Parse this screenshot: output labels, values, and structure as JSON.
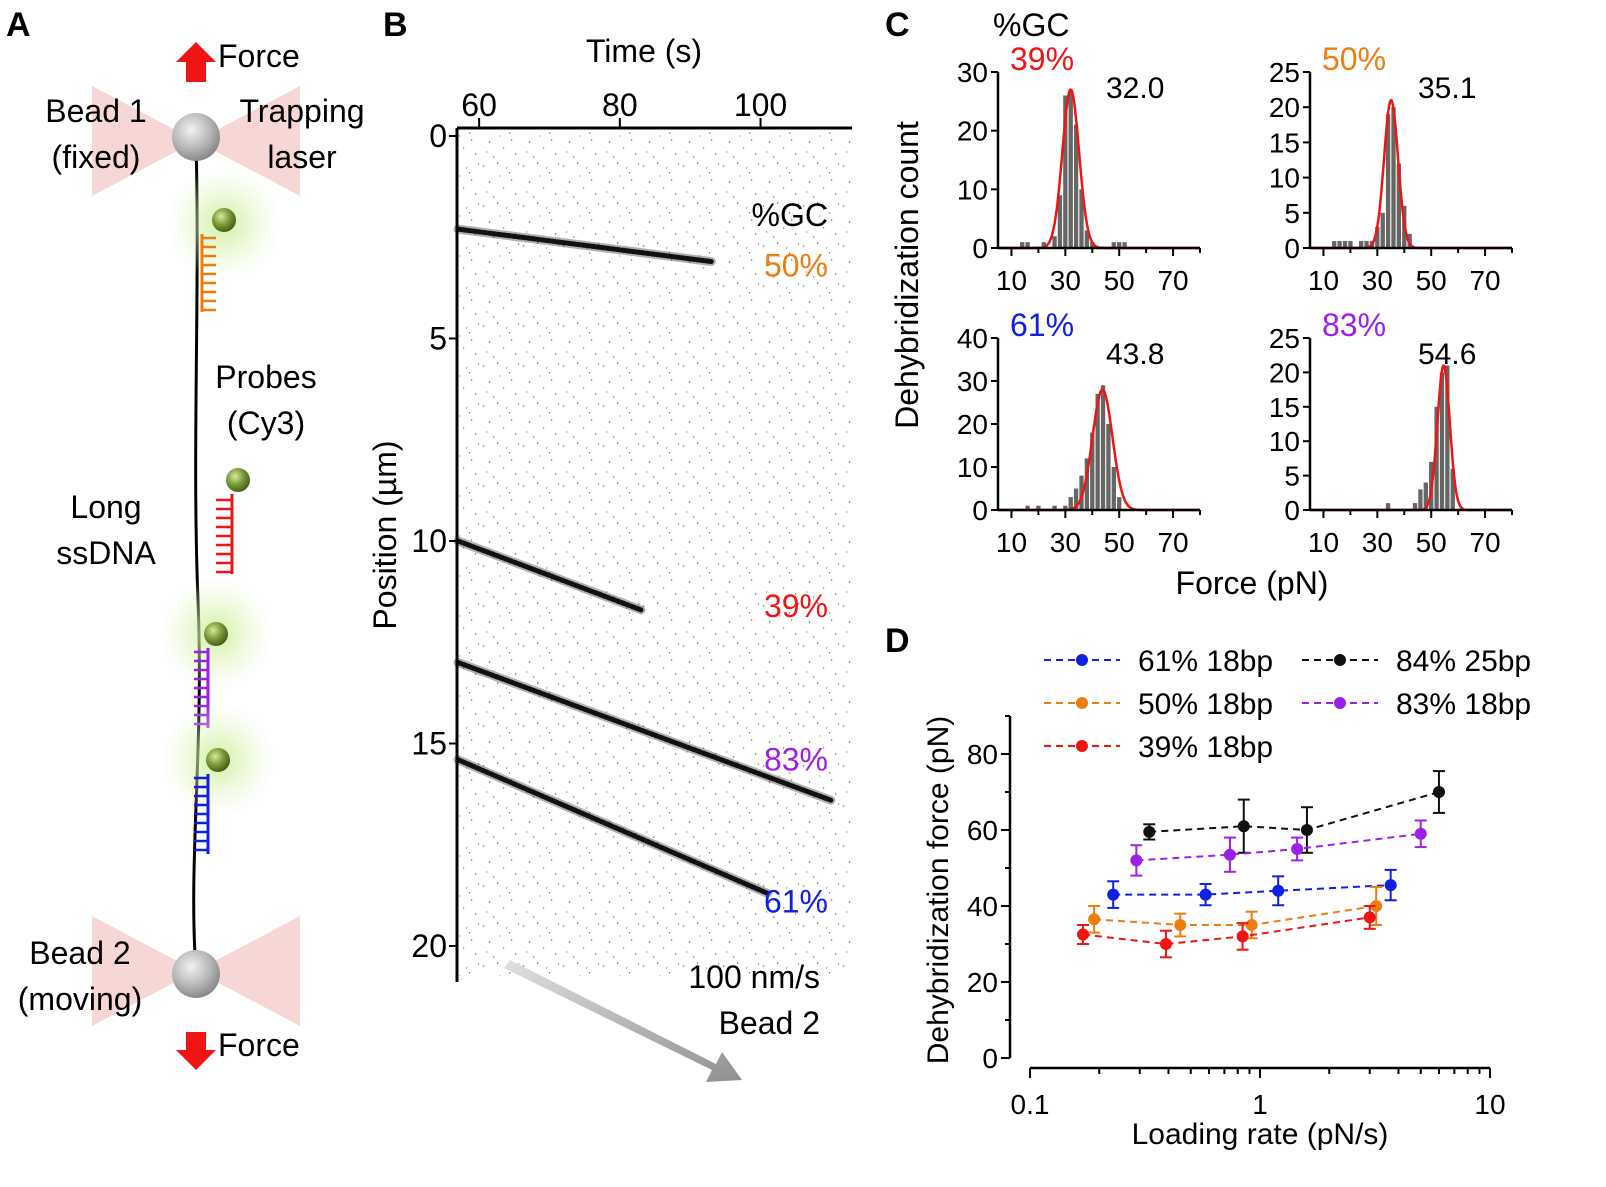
{
  "colors": {
    "red": "#f01414",
    "orange": "#ee7d10",
    "blue": "#1020e0",
    "purple": "#9c20e8",
    "black": "#111111",
    "bar": "#666666",
    "fit": "#f01414",
    "green_bead": "#7a9a38",
    "laser": "#f4c4c4"
  },
  "panels": {
    "a": "A",
    "b": "B",
    "c": "C",
    "d": "D"
  },
  "panel_a": {
    "force_top": "Force",
    "force_bottom": "Force",
    "bead1_line1": "Bead 1",
    "bead1_line2": "(fixed)",
    "laser_line1": "Trapping",
    "laser_line2": "laser",
    "probes_line1": "Probes",
    "probes_line2": "(Cy3)",
    "ssdna_line1": "Long",
    "ssdna_line2": "ssDNA",
    "bead2_line1": "Bead 2",
    "bead2_line2": "(moving)"
  },
  "panel_b": {
    "xlabel": "Time (s)",
    "ylabel": "Position (µm)",
    "speed_label": "100 nm/s",
    "bead_label": "Bead 2",
    "gc_header": "%GC"
  },
  "panel_c_header": "%GC",
  "panel_c_xlabel": "Force (pN)",
  "panel_c_ylabel": "Dehybridization count",
  "chart_data": [
    {
      "type": "line",
      "id": "kymograph",
      "xlabel": "Time (s)",
      "ylabel": "Position (µm)",
      "xlim": [
        57,
        113
      ],
      "ylim": [
        0,
        20
      ],
      "xticks": [
        60,
        80,
        100
      ],
      "yticks": [
        0,
        5,
        10,
        15,
        20
      ],
      "y_inverted": true,
      "series": [
        {
          "name": "50%",
          "color": "#ee7d10",
          "x": [
            57,
            93
          ],
          "y": [
            2.3,
            3.1
          ],
          "label_at": [
            102,
            3.2
          ]
        },
        {
          "name": "39%",
          "color": "#f01414",
          "x": [
            57,
            83
          ],
          "y": [
            10.0,
            11.7
          ],
          "label_at": [
            102,
            11.6
          ]
        },
        {
          "name": "83%",
          "color": "#9c20e8",
          "x": [
            57,
            110
          ],
          "y": [
            13.0,
            16.4
          ],
          "label_at": [
            102,
            15.4
          ]
        },
        {
          "name": "61%",
          "color": "#1020e0",
          "x": [
            57,
            101
          ],
          "y": [
            15.4,
            18.7
          ],
          "label_at": [
            102,
            18.9
          ]
        }
      ]
    },
    {
      "type": "bar",
      "id": "hist-39",
      "gc_label": "39%",
      "gc_color": "#f01414",
      "peak_label": "32.0",
      "xlim": [
        5,
        80
      ],
      "ylim": [
        0,
        30
      ],
      "xticks": [
        10,
        30,
        50,
        70
      ],
      "yticks": [
        0,
        10,
        20,
        30
      ],
      "bin_width": 2,
      "bins": [
        14,
        16,
        18,
        20,
        22,
        24,
        26,
        28,
        30,
        32,
        34,
        36,
        38,
        40,
        42,
        44,
        46,
        48,
        50,
        52
      ],
      "counts": [
        1,
        1,
        0,
        0,
        1,
        0,
        2,
        9,
        26,
        27,
        21,
        10,
        3,
        1,
        0,
        0,
        0,
        1,
        1,
        1
      ],
      "fit": {
        "mean": 32.0,
        "sd": 3.1,
        "amp": 27
      }
    },
    {
      "type": "bar",
      "id": "hist-50",
      "gc_label": "50%",
      "gc_color": "#ee7d10",
      "peak_label": "35.1",
      "xlim": [
        5,
        80
      ],
      "ylim": [
        0,
        25
      ],
      "xticks": [
        10,
        30,
        50,
        70
      ],
      "yticks": [
        0,
        5,
        10,
        15,
        20,
        25
      ],
      "bin_width": 2,
      "bins": [
        14,
        16,
        18,
        20,
        22,
        24,
        26,
        28,
        30,
        32,
        34,
        36,
        38,
        40,
        42
      ],
      "counts": [
        1,
        1,
        1,
        1,
        0,
        1,
        1,
        1,
        3,
        5,
        19,
        20,
        12,
        6,
        2
      ],
      "fit": {
        "mean": 35.1,
        "sd": 2.6,
        "amp": 21
      }
    },
    {
      "type": "bar",
      "id": "hist-61",
      "gc_label": "61%",
      "gc_color": "#1020e0",
      "peak_label": "43.8",
      "xlim": [
        5,
        80
      ],
      "ylim": [
        0,
        40
      ],
      "xticks": [
        10,
        30,
        50,
        70
      ],
      "yticks": [
        0,
        10,
        20,
        30,
        40
      ],
      "bin_width": 2,
      "bins": [
        16,
        20,
        26,
        30,
        32,
        34,
        36,
        38,
        40,
        42,
        44,
        46,
        48,
        50
      ],
      "counts": [
        1,
        1,
        1,
        1,
        3,
        5,
        8,
        12,
        18,
        27,
        29,
        20,
        10,
        3
      ],
      "fit": {
        "mean": 43.8,
        "sd": 3.7,
        "amp": 28
      }
    },
    {
      "type": "bar",
      "id": "hist-83",
      "gc_label": "83%",
      "gc_color": "#9c20e8",
      "peak_label": "54.6",
      "xlim": [
        5,
        80
      ],
      "ylim": [
        0,
        25
      ],
      "xticks": [
        10,
        30,
        50,
        70
      ],
      "yticks": [
        0,
        5,
        10,
        15,
        20,
        25
      ],
      "bin_width": 2,
      "bins": [
        34,
        44,
        46,
        48,
        50,
        52,
        54,
        56,
        58
      ],
      "counts": [
        1,
        1,
        3,
        4,
        7,
        15,
        20,
        21,
        6
      ],
      "fit": {
        "mean": 54.6,
        "sd": 2.3,
        "amp": 21
      }
    },
    {
      "type": "scatter",
      "id": "loading-rate",
      "xlabel": "Loading rate (pN/s)",
      "ylabel": "Dehybridization force (pN)",
      "x_scale": "log",
      "xlim": [
        0.1,
        10
      ],
      "ylim": [
        0,
        90
      ],
      "xticks": [
        "0.1",
        "1",
        "10"
      ],
      "yticks": [
        0,
        20,
        40,
        60,
        80
      ],
      "series": [
        {
          "name": "61% 18bp",
          "color": "#1020e0",
          "x": [
            0.23,
            0.58,
            1.2,
            3.7
          ],
          "y": [
            43,
            43,
            44,
            45.5
          ],
          "err": [
            3.5,
            2.8,
            3.8,
            4
          ]
        },
        {
          "name": "50% 18bp",
          "color": "#ee7d10",
          "x": [
            0.19,
            0.45,
            0.92,
            3.2
          ],
          "y": [
            36.5,
            35,
            35,
            40
          ],
          "err": [
            3.5,
            3,
            3.5,
            5
          ]
        },
        {
          "name": "39% 18bp",
          "color": "#f01414",
          "x": [
            0.17,
            0.39,
            0.84,
            3.0
          ],
          "y": [
            32.5,
            30,
            32,
            37
          ],
          "err": [
            2.5,
            3.5,
            3.5,
            3
          ]
        },
        {
          "name": "84% 25bp",
          "color": "#111111",
          "x": [
            0.33,
            0.85,
            1.6,
            6.0
          ],
          "y": [
            59.5,
            61,
            60,
            70
          ],
          "err": [
            2,
            7,
            6,
            5.5
          ]
        },
        {
          "name": "83% 18bp",
          "color": "#9c20e8",
          "x": [
            0.29,
            0.74,
            1.45,
            5.0
          ],
          "y": [
            52,
            53.5,
            55,
            59
          ],
          "err": [
            4,
            4.5,
            3,
            3.5
          ]
        }
      ]
    }
  ]
}
